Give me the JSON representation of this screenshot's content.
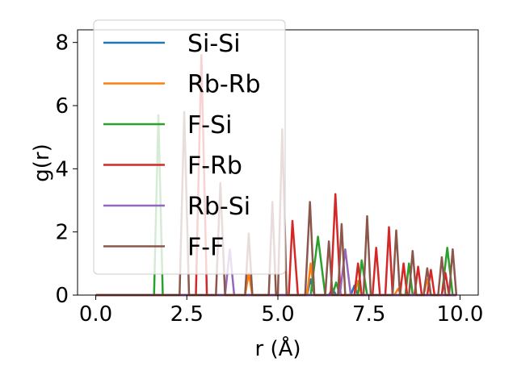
{
  "chart_data": {
    "type": "line",
    "xlabel": "r (Å)",
    "ylabel": "g(r)",
    "xlim": [
      -0.5,
      10.5
    ],
    "ylim": [
      0,
      8.4
    ],
    "xticks": [
      0.0,
      2.5,
      5.0,
      7.5,
      10.0
    ],
    "xtick_labels": [
      "0.0",
      "2.5",
      "5.0",
      "7.5",
      "10.0"
    ],
    "yticks": [
      0,
      2,
      4,
      6,
      8
    ],
    "ytick_labels": [
      "0",
      "2",
      "4",
      "6",
      "8"
    ],
    "grid": false,
    "legend_position": "upper-left",
    "series": [
      {
        "name": "Si-Si",
        "color": "#1f77b4",
        "points": [
          [
            0.0,
            0.0
          ],
          [
            5.8,
            0.0
          ],
          [
            5.9,
            0.5
          ],
          [
            6.0,
            0.0
          ],
          [
            6.4,
            0.0
          ],
          [
            6.5,
            0.2
          ],
          [
            6.6,
            0.0
          ],
          [
            7.0,
            0.0
          ],
          [
            7.1,
            0.3
          ],
          [
            7.2,
            0.0
          ],
          [
            9.9,
            0.0
          ]
        ]
      },
      {
        "name": "Rb-Rb",
        "color": "#ff7f0e",
        "points": [
          [
            0.0,
            0.0
          ],
          [
            4.1,
            0.0
          ],
          [
            4.2,
            0.7
          ],
          [
            4.3,
            0.0
          ],
          [
            5.8,
            0.0
          ],
          [
            5.9,
            1.0
          ],
          [
            6.0,
            0.0
          ],
          [
            7.1,
            0.0
          ],
          [
            7.2,
            0.45
          ],
          [
            7.3,
            0.0
          ],
          [
            8.2,
            0.0
          ],
          [
            8.3,
            0.2
          ],
          [
            8.4,
            0.0
          ],
          [
            9.0,
            0.0
          ],
          [
            9.1,
            0.5
          ],
          [
            9.2,
            0.0
          ],
          [
            9.9,
            0.0
          ]
        ]
      },
      {
        "name": "F-Si",
        "color": "#2ca02c",
        "points": [
          [
            0.0,
            0.0
          ],
          [
            1.6,
            0.0
          ],
          [
            1.72,
            5.7
          ],
          [
            1.84,
            0.0
          ],
          [
            5.9,
            0.0
          ],
          [
            6.1,
            1.85
          ],
          [
            6.3,
            0.0
          ],
          [
            6.5,
            0.0
          ],
          [
            6.6,
            0.4
          ],
          [
            6.7,
            0.0
          ],
          [
            7.2,
            0.0
          ],
          [
            7.3,
            1.1
          ],
          [
            7.45,
            0.0
          ],
          [
            8.5,
            0.0
          ],
          [
            8.6,
            1.0
          ],
          [
            8.7,
            0.0
          ],
          [
            9.5,
            0.0
          ],
          [
            9.65,
            1.5
          ],
          [
            9.8,
            0.0
          ],
          [
            9.9,
            0.0
          ]
        ]
      },
      {
        "name": "F-Rb",
        "color": "#d62728",
        "points": [
          [
            0.0,
            0.0
          ],
          [
            2.75,
            0.0
          ],
          [
            2.9,
            7.6
          ],
          [
            3.05,
            0.0
          ],
          [
            5.3,
            0.0
          ],
          [
            5.4,
            2.35
          ],
          [
            5.55,
            0.0
          ],
          [
            6.45,
            0.0
          ],
          [
            6.58,
            3.2
          ],
          [
            6.72,
            0.0
          ],
          [
            7.1,
            0.0
          ],
          [
            7.2,
            1.0
          ],
          [
            7.3,
            0.0
          ],
          [
            7.6,
            0.0
          ],
          [
            7.7,
            1.5
          ],
          [
            7.8,
            0.0
          ],
          [
            7.95,
            0.0
          ],
          [
            8.05,
            2.15
          ],
          [
            8.15,
            0.0
          ],
          [
            8.35,
            0.0
          ],
          [
            8.45,
            1.0
          ],
          [
            8.55,
            0.0
          ],
          [
            8.75,
            0.0
          ],
          [
            8.85,
            0.9
          ],
          [
            8.95,
            0.0
          ],
          [
            9.1,
            0.0
          ],
          [
            9.2,
            0.8
          ],
          [
            9.3,
            0.0
          ],
          [
            9.5,
            0.0
          ],
          [
            9.6,
            0.7
          ],
          [
            9.7,
            0.0
          ],
          [
            9.9,
            0.0
          ]
        ]
      },
      {
        "name": "Rb-Si",
        "color": "#9467bd",
        "points": [
          [
            0.0,
            0.0
          ],
          [
            3.55,
            0.0
          ],
          [
            3.68,
            1.45
          ],
          [
            3.8,
            0.0
          ],
          [
            6.7,
            0.0
          ],
          [
            6.85,
            1.45
          ],
          [
            7.0,
            0.0
          ],
          [
            9.9,
            0.0
          ]
        ]
      },
      {
        "name": "F-F",
        "color": "#8c564b",
        "points": [
          [
            0.0,
            0.0
          ],
          [
            2.3,
            0.0
          ],
          [
            2.43,
            5.8
          ],
          [
            2.56,
            0.0
          ],
          [
            3.3,
            0.0
          ],
          [
            3.42,
            3.55
          ],
          [
            3.55,
            0.0
          ],
          [
            4.1,
            0.0
          ],
          [
            4.2,
            1.95
          ],
          [
            4.3,
            0.0
          ],
          [
            4.75,
            0.0
          ],
          [
            4.85,
            2.95
          ],
          [
            4.95,
            0.0
          ],
          [
            5.0,
            0.0
          ],
          [
            5.12,
            5.25
          ],
          [
            5.24,
            0.0
          ],
          [
            5.75,
            0.0
          ],
          [
            5.88,
            2.95
          ],
          [
            6.0,
            0.0
          ],
          [
            6.3,
            0.0
          ],
          [
            6.4,
            1.7
          ],
          [
            6.5,
            0.0
          ],
          [
            6.65,
            0.0
          ],
          [
            6.75,
            2.25
          ],
          [
            6.85,
            0.0
          ],
          [
            7.35,
            0.0
          ],
          [
            7.45,
            2.5
          ],
          [
            7.55,
            0.0
          ],
          [
            8.15,
            0.0
          ],
          [
            8.25,
            2.05
          ],
          [
            8.35,
            0.0
          ],
          [
            8.6,
            0.0
          ],
          [
            8.7,
            1.4
          ],
          [
            8.8,
            0.0
          ],
          [
            9.0,
            0.0
          ],
          [
            9.1,
            0.85
          ],
          [
            9.2,
            0.0
          ],
          [
            9.4,
            0.0
          ],
          [
            9.5,
            1.2
          ],
          [
            9.6,
            0.0
          ],
          [
            9.7,
            0.0
          ],
          [
            9.8,
            1.45
          ],
          [
            9.9,
            0.0
          ]
        ]
      }
    ]
  }
}
